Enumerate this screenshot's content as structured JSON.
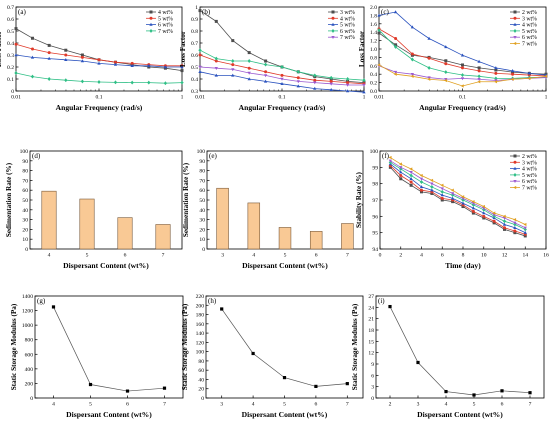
{
  "chart_data": [
    {
      "id": "a",
      "type": "line",
      "panel_label": "(a)",
      "xlabel": "Angular Frequency (rad/s)",
      "ylabel": "Loss Factor",
      "xscale": "log",
      "xlim": [
        0.01,
        1
      ],
      "ylim": [
        0,
        0.7
      ],
      "xticks": [
        0.01,
        0.1,
        1
      ],
      "xtick_labels": [
        "0.01",
        "0.1",
        "1"
      ],
      "yticks": [
        0,
        0.1,
        0.2,
        0.3,
        0.4,
        0.5,
        0.6,
        0.7
      ],
      "ytick_labels": [
        "0",
        "0.1",
        "0.2",
        "0.3",
        "0.4",
        "0.5",
        "0.6",
        "0.7"
      ],
      "legend_position": "top-right",
      "x": [
        0.01,
        0.0158,
        0.0251,
        0.0398,
        0.0631,
        0.1,
        0.158,
        0.251,
        0.398,
        0.631,
        1
      ],
      "series": [
        {
          "name": "4 wt%",
          "marker": "square",
          "color": "#4d4d4d",
          "values": [
            0.52,
            0.44,
            0.38,
            0.34,
            0.3,
            0.26,
            0.24,
            0.22,
            0.2,
            0.19,
            0.17
          ]
        },
        {
          "name": "5 wt%",
          "marker": "circle",
          "color": "#e03a2a",
          "values": [
            0.39,
            0.35,
            0.32,
            0.3,
            0.28,
            0.26,
            0.24,
            0.23,
            0.22,
            0.21,
            0.21
          ]
        },
        {
          "name": "6 wt%",
          "marker": "triangle",
          "color": "#2a52be",
          "values": [
            0.3,
            0.28,
            0.27,
            0.26,
            0.25,
            0.23,
            0.22,
            0.21,
            0.21,
            0.2,
            0.2
          ]
        },
        {
          "name": "7 wt%",
          "marker": "diamond",
          "color": "#2fbf86",
          "values": [
            0.15,
            0.12,
            0.1,
            0.09,
            0.08,
            0.075,
            0.072,
            0.07,
            0.07,
            0.065,
            0.07
          ]
        }
      ]
    },
    {
      "id": "b",
      "type": "line",
      "panel_label": "(b)",
      "xlabel": "Angular Frequency (rad/s)",
      "ylabel": "Loss Factor",
      "xscale": "log",
      "xlim": [
        0.01,
        1
      ],
      "ylim": [
        0.3,
        1.0
      ],
      "xticks": [
        0.01,
        0.1,
        1
      ],
      "xtick_labels": [
        "0.01",
        "0.1",
        "1"
      ],
      "yticks": [
        0.3,
        0.4,
        0.5,
        0.6,
        0.7,
        0.8,
        0.9,
        1.0
      ],
      "ytick_labels": [
        "0.3",
        "0.4",
        "0.5",
        "0.6",
        "0.7",
        "0.8",
        "0.9",
        "1"
      ],
      "legend_position": "top-right",
      "x": [
        0.01,
        0.0158,
        0.0251,
        0.0398,
        0.0631,
        0.1,
        0.158,
        0.251,
        0.398,
        0.631,
        1
      ],
      "series": [
        {
          "name": "3 wt%",
          "marker": "square",
          "color": "#4d4d4d",
          "values": [
            0.97,
            0.88,
            0.72,
            0.62,
            0.55,
            0.5,
            0.46,
            0.42,
            0.4,
            0.38,
            0.37
          ]
        },
        {
          "name": "4 wt%",
          "marker": "circle",
          "color": "#e03a2a",
          "values": [
            0.6,
            0.55,
            0.52,
            0.49,
            0.46,
            0.43,
            0.41,
            0.39,
            0.38,
            0.37,
            0.36
          ]
        },
        {
          "name": "5 wt%",
          "marker": "triangle",
          "color": "#2a52be",
          "values": [
            0.46,
            0.43,
            0.43,
            0.4,
            0.38,
            0.36,
            0.34,
            0.32,
            0.31,
            0.3,
            0.29
          ]
        },
        {
          "name": "6 wt%",
          "marker": "diamond",
          "color": "#2fbf86",
          "values": [
            0.64,
            0.57,
            0.55,
            0.55,
            0.52,
            0.5,
            0.46,
            0.43,
            0.41,
            0.4,
            0.39
          ]
        },
        {
          "name": "7 wt%",
          "marker": "triangle-down",
          "color": "#9b59d0",
          "values": [
            0.5,
            0.49,
            0.48,
            0.45,
            0.43,
            0.4,
            0.38,
            0.37,
            0.36,
            0.35,
            0.35
          ]
        }
      ]
    },
    {
      "id": "c",
      "type": "line",
      "panel_label": "(c)",
      "xlabel": "Angular Frequency (rad/s)",
      "ylabel": "Loss Factor",
      "xscale": "log",
      "xlim": [
        0.01,
        1
      ],
      "ylim": [
        0.0,
        2.0
      ],
      "xticks": [
        0.01,
        0.1,
        1
      ],
      "xtick_labels": [
        "0.01",
        "0.1",
        "1"
      ],
      "yticks": [
        0.0,
        0.2,
        0.4,
        0.6,
        0.8,
        1.0,
        1.2,
        1.4,
        1.6,
        1.8,
        2.0
      ],
      "ytick_labels": [
        "0.0",
        "0.2",
        "0.4",
        "0.6",
        "0.8",
        "1.0",
        "1.2",
        "1.4",
        "1.6",
        "1.8",
        "2.0"
      ],
      "legend_position": "top-right",
      "x": [
        0.01,
        0.0158,
        0.0251,
        0.0398,
        0.0631,
        0.1,
        0.158,
        0.251,
        0.398,
        0.631,
        1
      ],
      "series": [
        {
          "name": "2 wt%",
          "marker": "square",
          "color": "#4d4d4d",
          "values": [
            1.38,
            1.1,
            0.85,
            0.8,
            0.72,
            0.62,
            0.55,
            0.5,
            0.45,
            0.42,
            0.4
          ]
        },
        {
          "name": "3 wt%",
          "marker": "circle",
          "color": "#e03a2a",
          "values": [
            1.48,
            1.25,
            0.88,
            0.78,
            0.65,
            0.55,
            0.48,
            0.42,
            0.4,
            0.38,
            0.36
          ]
        },
        {
          "name": "4 wt%",
          "marker": "triangle",
          "color": "#2a52be",
          "values": [
            1.8,
            1.88,
            1.52,
            1.25,
            1.05,
            0.85,
            0.7,
            0.55,
            0.48,
            0.42,
            0.38
          ]
        },
        {
          "name": "5 wt%",
          "marker": "diamond",
          "color": "#2fbf86",
          "values": [
            1.45,
            1.05,
            0.75,
            0.55,
            0.45,
            0.38,
            0.35,
            0.3,
            0.3,
            0.32,
            0.33
          ]
        },
        {
          "name": "6 wt%",
          "marker": "triangle-down",
          "color": "#9b59d0",
          "values": [
            0.6,
            0.45,
            0.4,
            0.32,
            0.28,
            0.3,
            0.28,
            0.25,
            0.28,
            0.3,
            0.32
          ]
        },
        {
          "name": "7 wt%",
          "marker": "triangle-left",
          "color": "#e0a020",
          "values": [
            0.62,
            0.4,
            0.35,
            0.28,
            0.25,
            0.12,
            0.22,
            0.22,
            0.28,
            0.3,
            0.35
          ]
        }
      ]
    },
    {
      "id": "d",
      "type": "bar",
      "panel_label": "(d)",
      "xlabel": "Dispersant Content (wt%)",
      "ylabel": "Sedimentation Rate (%)",
      "categories": [
        "4",
        "5",
        "6",
        "7"
      ],
      "values": [
        59,
        51,
        32,
        25
      ],
      "ylim": [
        0,
        100
      ],
      "yticks": [
        0,
        10,
        20,
        30,
        40,
        50,
        60,
        70,
        80,
        90,
        100
      ],
      "ytick_labels": [
        "0",
        "10",
        "20",
        "30",
        "40",
        "50",
        "60",
        "70",
        "80",
        "90",
        "100"
      ],
      "bar_color": "#f9c995"
    },
    {
      "id": "e",
      "type": "bar",
      "panel_label": "(e)",
      "xlabel": "Dispersant Content (wt%)",
      "ylabel": "Sedimentation Rate (%)",
      "categories": [
        "3",
        "4",
        "5",
        "6",
        "7"
      ],
      "values": [
        62,
        47,
        22,
        18,
        26
      ],
      "ylim": [
        0,
        100
      ],
      "yticks": [
        0,
        10,
        20,
        30,
        40,
        50,
        60,
        70,
        80,
        90,
        100
      ],
      "ytick_labels": [
        "0",
        "10",
        "20",
        "30",
        "40",
        "50",
        "60",
        "70",
        "80",
        "90",
        "100"
      ],
      "bar_color": "#f9c995"
    },
    {
      "id": "f",
      "type": "line",
      "panel_label": "(f)",
      "xlabel": "Time (day)",
      "ylabel": "Stability Rate (%)",
      "xlim": [
        0,
        16
      ],
      "ylim": [
        94,
        100
      ],
      "xticks": [
        0,
        2,
        4,
        6,
        8,
        10,
        12,
        14,
        16
      ],
      "xtick_labels": [
        "0",
        "2",
        "4",
        "6",
        "8",
        "10",
        "12",
        "14",
        "16"
      ],
      "yticks": [
        94,
        95,
        96,
        97,
        98,
        99,
        100
      ],
      "ytick_labels": [
        "94",
        "95",
        "96",
        "97",
        "98",
        "99",
        "100"
      ],
      "legend_position": "top-right",
      "x": [
        1,
        2,
        3,
        4,
        5,
        6,
        7,
        8,
        9,
        10,
        11,
        12,
        13,
        14
      ],
      "series": [
        {
          "name": "2 wt%",
          "marker": "square",
          "color": "#4d4d4d",
          "values": [
            99.0,
            98.3,
            97.9,
            97.5,
            97.4,
            97.0,
            96.9,
            96.6,
            96.2,
            95.9,
            95.6,
            95.2,
            95.0,
            94.8
          ]
        },
        {
          "name": "3 wt%",
          "marker": "circle",
          "color": "#e03a2a",
          "values": [
            99.1,
            98.5,
            98.1,
            97.6,
            97.5,
            97.1,
            97.0,
            96.7,
            96.3,
            96.0,
            95.7,
            95.3,
            95.1,
            94.9
          ]
        },
        {
          "name": "4 wt%",
          "marker": "triangle",
          "color": "#2a52be",
          "values": [
            99.2,
            98.7,
            98.3,
            97.8,
            97.6,
            97.3,
            97.1,
            96.8,
            96.5,
            96.2,
            95.9,
            95.5,
            95.3,
            95.0
          ]
        },
        {
          "name": "5 wt%",
          "marker": "diamond",
          "color": "#2fbf86",
          "values": [
            99.3,
            98.9,
            98.5,
            98.1,
            97.8,
            97.5,
            97.3,
            97.0,
            96.7,
            96.4,
            96.0,
            95.7,
            95.5,
            95.2
          ]
        },
        {
          "name": "6 wt%",
          "marker": "triangle-down",
          "color": "#9b59d0",
          "values": [
            99.4,
            99.0,
            98.7,
            98.3,
            98.0,
            97.7,
            97.4,
            97.1,
            96.8,
            96.5,
            96.1,
            95.9,
            95.6,
            95.3
          ]
        },
        {
          "name": "7 wt%",
          "marker": "triangle-left",
          "color": "#e0a020",
          "values": [
            99.6,
            99.2,
            98.9,
            98.5,
            98.2,
            97.9,
            97.6,
            97.2,
            96.9,
            96.6,
            96.2,
            96.0,
            95.8,
            95.5
          ]
        }
      ]
    },
    {
      "id": "g",
      "type": "line",
      "panel_label": "(g)",
      "xlabel": "Dispersant Content (wt%)",
      "ylabel": "Static Storage Modulus (Pa)",
      "xlim": [
        3.5,
        7.5
      ],
      "ylim": [
        0,
        1400
      ],
      "xticks": [
        4,
        5,
        6,
        7
      ],
      "xtick_labels": [
        "4",
        "5",
        "6",
        "7"
      ],
      "yticks": [
        0,
        200,
        400,
        600,
        800,
        1000,
        1200,
        1400
      ],
      "ytick_labels": [
        "0",
        "200",
        "400",
        "600",
        "800",
        "1000",
        "1200",
        "1400"
      ],
      "x": [
        4,
        5,
        6,
        7
      ],
      "series": [
        {
          "values": [
            1250,
            185,
            95,
            135
          ],
          "marker": "square",
          "color": "#000000"
        }
      ]
    },
    {
      "id": "h",
      "type": "line",
      "panel_label": "(h)",
      "xlabel": "Dispersant Content (wt%)",
      "ylabel": "Static Storage Modulus (Pa)",
      "xlim": [
        2.5,
        7.5
      ],
      "ylim": [
        0,
        220
      ],
      "xticks": [
        3,
        4,
        5,
        6,
        7
      ],
      "xtick_labels": [
        "3",
        "4",
        "5",
        "6",
        "7"
      ],
      "yticks": [
        0,
        20,
        40,
        60,
        80,
        100,
        120,
        140,
        160,
        180,
        200,
        220
      ],
      "ytick_labels": [
        "0",
        "20",
        "40",
        "60",
        "80",
        "100",
        "120",
        "140",
        "160",
        "180",
        "200",
        "220"
      ],
      "x": [
        3,
        4,
        5,
        6,
        7
      ],
      "series": [
        {
          "values": [
            192,
            96,
            44,
            25,
            31
          ],
          "marker": "square",
          "color": "#000000"
        }
      ]
    },
    {
      "id": "i",
      "type": "line",
      "panel_label": "(i)",
      "xlabel": "Dispersant Content (wt%)",
      "ylabel": "Static Storage Modulus (Pa)",
      "xlim": [
        1.5,
        7.5
      ],
      "ylim": [
        0,
        27
      ],
      "xticks": [
        2,
        3,
        4,
        5,
        6,
        7
      ],
      "xtick_labels": [
        "2",
        "3",
        "4",
        "5",
        "6",
        "7"
      ],
      "yticks": [
        0,
        3,
        6,
        9,
        12,
        15,
        18,
        21,
        24,
        27
      ],
      "ytick_labels": [
        "0",
        "3",
        "6",
        "9",
        "12",
        "15",
        "18",
        "21",
        "24",
        "27"
      ],
      "x": [
        2,
        3,
        4,
        5,
        6,
        7
      ],
      "series": [
        {
          "values": [
            24.2,
            9.4,
            1.7,
            0.8,
            1.9,
            1.4
          ],
          "marker": "square",
          "color": "#000000"
        }
      ]
    }
  ]
}
